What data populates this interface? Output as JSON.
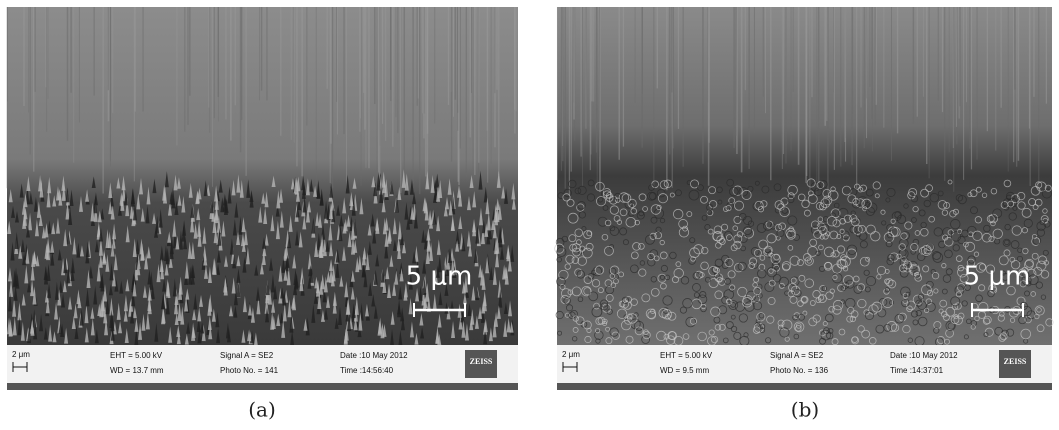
{
  "panels": [
    {
      "scale_bar": "5 μm",
      "info_bar": {
        "scale": "2 μm",
        "eht": "EHT = 5.00 kV",
        "wd": "WD = 13.7 mm",
        "signal": "Signal A = SE2",
        "photo_no": "Photo No. = 141",
        "date": "Date :10 May 2012",
        "time": "Time :14:56:40",
        "logo": "ZEISS"
      },
      "caption": "(a)"
    },
    {
      "scale_bar": "5 μm",
      "info_bar": {
        "scale": "2 μm",
        "eht": "EHT = 5.00 kV",
        "wd": "WD = 9.5 mm",
        "signal": "Signal A = SE2",
        "photo_no": "Photo No. = 136",
        "date": "Date :10 May 2012",
        "time": "Time :14:37:01",
        "logo": "ZEISS"
      },
      "caption": "(b)"
    }
  ]
}
